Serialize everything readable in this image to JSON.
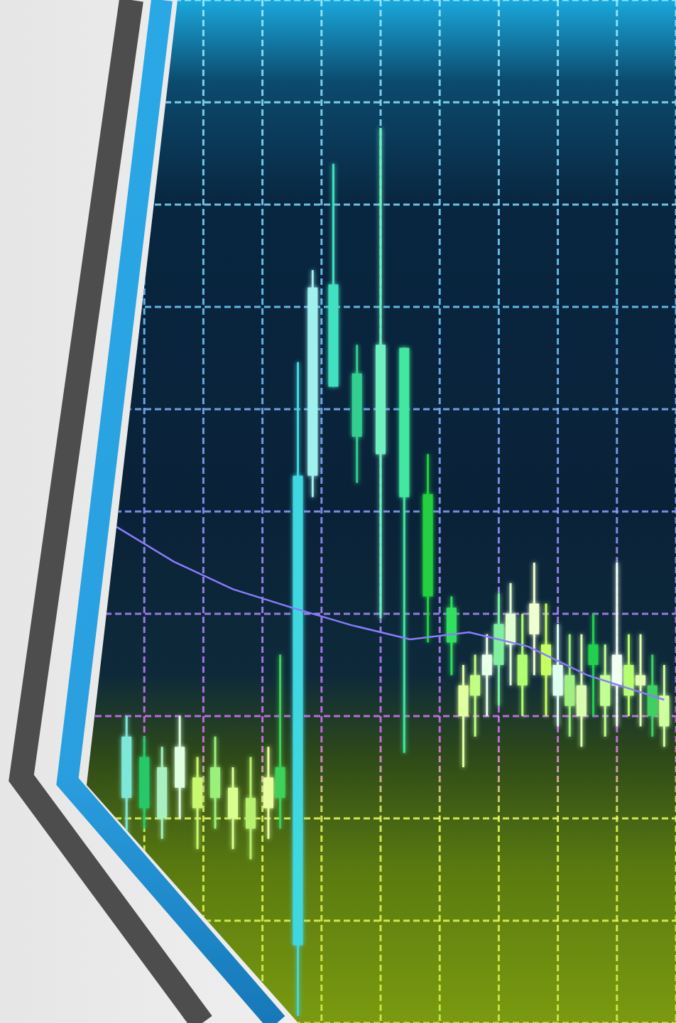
{
  "chart_data": {
    "type": "candlestick",
    "grid": true,
    "tick_labels": false,
    "xlim": [
      0,
      100
    ],
    "ylim": [
      0,
      100
    ],
    "xticks": [
      0,
      10,
      20,
      30,
      40,
      50,
      60,
      70,
      80,
      90,
      100
    ],
    "yticks": [
      0,
      10,
      20,
      30,
      40,
      50,
      60,
      70,
      80,
      90,
      100
    ],
    "series": [
      {
        "type": "candlestick",
        "x": [
          7,
          10,
          13,
          16,
          19,
          22,
          25,
          28,
          31,
          33,
          36,
          38.5,
          42,
          46,
          50,
          54,
          58,
          62,
          64,
          66,
          68,
          70,
          72,
          74,
          76,
          78,
          80,
          82,
          84,
          86,
          88,
          90,
          92,
          94,
          96,
          98
        ],
        "open": [
          28,
          26,
          25,
          27,
          24,
          25,
          23,
          22,
          24,
          25,
          53.5,
          71.9,
          72.2,
          63.5,
          66.3,
          66,
          51.7,
          40.6,
          30,
          32,
          34,
          35,
          37,
          36,
          38,
          37,
          35,
          34,
          33,
          35,
          34,
          33,
          35,
          34,
          33,
          32
        ],
        "high": [
          30,
          28,
          27,
          30,
          26,
          28,
          25,
          26,
          27,
          36,
          64.6,
          73.6,
          84,
          66.3,
          87.5,
          66,
          55.6,
          41.7,
          35,
          36,
          38,
          42,
          43,
          40,
          45,
          41,
          39,
          38,
          38,
          40,
          37,
          45,
          38,
          38,
          36,
          35
        ],
        "low": [
          18,
          19,
          18,
          20,
          17,
          19,
          17,
          16,
          18,
          19,
          0.7,
          51.4,
          62.2,
          52.8,
          39.6,
          26.4,
          37.2,
          34,
          25,
          28,
          30,
          31,
          33,
          30,
          34,
          30,
          29,
          28,
          27,
          30,
          28,
          29,
          30,
          29,
          28,
          27
        ],
        "close": [
          22,
          21,
          20,
          23,
          21,
          22,
          20,
          19,
          21,
          22,
          7.6,
          53.5,
          62.2,
          57.3,
          55.6,
          51.4,
          41.7,
          37.2,
          33,
          34,
          36,
          39,
          40,
          33,
          41,
          34,
          32,
          31,
          30,
          37,
          31,
          36,
          32,
          33,
          30,
          29
        ],
        "colors": [
          "#7de8d8",
          "#27c96a",
          "#a8f0c0",
          "#e0ffe0",
          "#c8f870",
          "#9af07a",
          "#d8ff90",
          "#b8f070",
          "#e8ffa0",
          "#3cd25a",
          "#40d8e0",
          "#a0f0f0",
          "#40e0c0",
          "#30d090",
          "#70f0c0",
          "#40e8a0",
          "#20d040",
          "#30e060",
          "#e0ffa0",
          "#c0ff80",
          "#e8ffe8",
          "#80f0a0",
          "#e0ffd0",
          "#b0ff70",
          "#f0ffd0",
          "#c8ff60",
          "#e0fff0",
          "#a0f080",
          "#d8ffb0",
          "#20d050",
          "#c0ff90",
          "#f0fff0",
          "#b8ff70",
          "#e0ffb0",
          "#40d060",
          "#d0ffa0"
        ]
      },
      {
        "type": "line",
        "color": "#8a7cff",
        "x": [
          5,
          15,
          25,
          35,
          45,
          55,
          65,
          75,
          85,
          98
        ],
        "values": [
          48.6,
          45.1,
          42.4,
          40.6,
          38.9,
          37.5,
          38.2,
          36.8,
          34,
          31.6
        ]
      }
    ]
  }
}
